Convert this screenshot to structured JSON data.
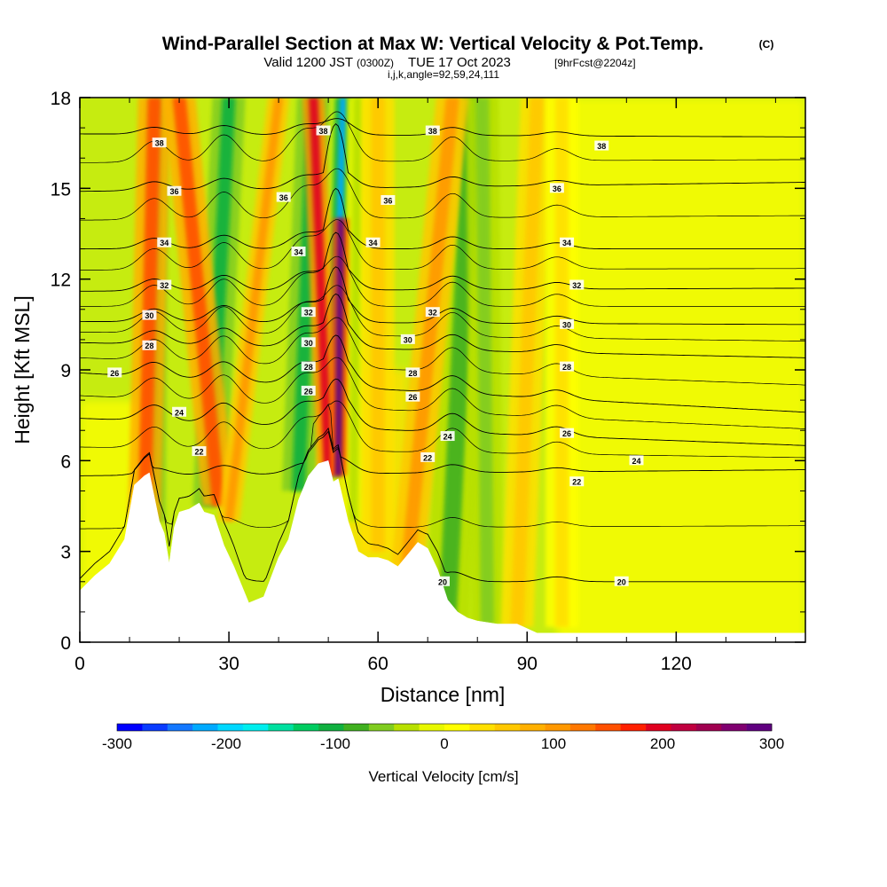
{
  "chart_data": {
    "type": "heatmap",
    "title": "Wind-Parallel Section at Max W: Vertical Velocity & Pot.Temp.",
    "title_mark": "(C)",
    "subtitle_prefix": "Valid 1200 JST",
    "subtitle_zulu": "(0300Z)",
    "subtitle_date": "TUE 17 Oct 2023",
    "subtitle_fcst": "[9hrFcst@2204z]",
    "subtitle_line3": "i,j,k,angle=92,59,24,111",
    "xlabel": "Distance [nm]",
    "ylabel": "Height [Kft MSL]",
    "xlim": [
      0,
      146
    ],
    "ylim": [
      0,
      18
    ],
    "xticks": [
      "0",
      "30",
      "60",
      "90",
      "120"
    ],
    "xtick_values": [
      0,
      30,
      60,
      90,
      120
    ],
    "yticks": [
      "0",
      "3",
      "6",
      "9",
      "12",
      "15",
      "18"
    ],
    "ytick_values": [
      0,
      3,
      6,
      9,
      12,
      15,
      18
    ],
    "colorbar": {
      "label": "Vertical Velocity [cm/s]",
      "range": [
        -300,
        300
      ],
      "ticks": [
        "-300",
        "-200",
        "-100",
        "0",
        "100",
        "200",
        "300"
      ],
      "tick_values": [
        -300,
        -200,
        -100,
        0,
        100,
        200,
        300
      ],
      "colors": [
        "#0000ff",
        "#0a3cff",
        "#1478ff",
        "#00aaff",
        "#00d8ff",
        "#00eeee",
        "#00e0a0",
        "#00cc60",
        "#10b040",
        "#40b020",
        "#80cc20",
        "#b8e000",
        "#e8f800",
        "#ffff00",
        "#ffe000",
        "#ffc800",
        "#ffb000",
        "#ff9800",
        "#ff7800",
        "#ff5000",
        "#ff2000",
        "#e00020",
        "#c00040",
        "#a00050",
        "#800070",
        "#600080"
      ]
    },
    "terrain_kft": [
      [
        0,
        1.7
      ],
      [
        3,
        2.2
      ],
      [
        6,
        2.6
      ],
      [
        9,
        3.4
      ],
      [
        11,
        5.2
      ],
      [
        13,
        5.5
      ],
      [
        14,
        5.6
      ],
      [
        16,
        4.0
      ],
      [
        17,
        3.6
      ],
      [
        18,
        2.6
      ],
      [
        19,
        3.8
      ],
      [
        20,
        4.3
      ],
      [
        22,
        4.4
      ],
      [
        24,
        4.6
      ],
      [
        25,
        4.3
      ],
      [
        27,
        4.2
      ],
      [
        29,
        3.2
      ],
      [
        31,
        2.5
      ],
      [
        34,
        1.3
      ],
      [
        37,
        1.5
      ],
      [
        40,
        2.8
      ],
      [
        42,
        3.4
      ],
      [
        44,
        4.7
      ],
      [
        46,
        5.5
      ],
      [
        48,
        5.9
      ],
      [
        50,
        6.0
      ],
      [
        51,
        5.3
      ],
      [
        52,
        5.4
      ],
      [
        54,
        4.0
      ],
      [
        56,
        3.0
      ],
      [
        58,
        2.8
      ],
      [
        60,
        2.8
      ],
      [
        62,
        2.7
      ],
      [
        64,
        2.5
      ],
      [
        66,
        2.9
      ],
      [
        68,
        3.3
      ],
      [
        70,
        3.1
      ],
      [
        72,
        2.4
      ],
      [
        74,
        1.4
      ],
      [
        76,
        1.0
      ],
      [
        78,
        0.8
      ],
      [
        80,
        0.7
      ],
      [
        84,
        0.6
      ],
      [
        88,
        0.6
      ],
      [
        92,
        0.3
      ],
      [
        100,
        0.3
      ],
      [
        146,
        0.3
      ]
    ],
    "updrafts": [
      {
        "x0": 13,
        "h0": 4.0,
        "h1": 18,
        "x1": 15,
        "w": 3,
        "value": 160
      },
      {
        "x0": 28,
        "h0": 4.5,
        "h1": 18,
        "x1": 20,
        "w": 3,
        "value": 150
      },
      {
        "x0": 30,
        "h0": 4.0,
        "h1": 18,
        "x1": 40,
        "w": 2,
        "value": 110
      },
      {
        "x0": 50,
        "h0": 5.5,
        "h1": 18,
        "x1": 47,
        "w": 2,
        "value": 200
      },
      {
        "x0": 52,
        "h0": 5.5,
        "h1": 14,
        "x1": 52.5,
        "w": 1.5,
        "value": 280
      },
      {
        "x0": 60,
        "h0": 3.0,
        "h1": 18,
        "x1": 60,
        "w": 3,
        "value": 60
      },
      {
        "x0": 66,
        "h0": 2.5,
        "h1": 18,
        "x1": 75,
        "w": 3,
        "value": 100
      },
      {
        "x0": 88,
        "h0": 0.5,
        "h1": 18,
        "x1": 92,
        "w": 3,
        "value": 50
      },
      {
        "x0": 97,
        "h0": 0.5,
        "h1": 18,
        "x1": 97,
        "w": 3,
        "value": 40
      }
    ],
    "downdrafts": [
      {
        "x0": 15,
        "h0": 4.0,
        "h1": 18,
        "x1": 15.5,
        "w": 2,
        "value": -110
      },
      {
        "x0": 26,
        "h0": 4.5,
        "h1": 18,
        "x1": 30,
        "w": 3,
        "value": -100
      },
      {
        "x0": 44,
        "h0": 5.0,
        "h1": 18,
        "x1": 47,
        "w": 3,
        "value": -100
      },
      {
        "x0": 51,
        "h0": 5.5,
        "h1": 18,
        "x1": 53,
        "w": 1.5,
        "value": -220
      },
      {
        "x0": 55,
        "h0": 4.0,
        "h1": 18,
        "x1": 56,
        "w": 2,
        "value": -40
      },
      {
        "x0": 74,
        "h0": 0.8,
        "h1": 18,
        "x1": 79,
        "w": 4,
        "value": -90
      },
      {
        "x0": 82,
        "h0": 0.6,
        "h1": 18,
        "x1": 81,
        "w": 3,
        "value": -50
      }
    ],
    "isentropes": [
      {
        "theta": 20,
        "h_west": 2.0,
        "h_east": 2.0
      },
      {
        "theta": 22,
        "h_west": 5.5,
        "h_east": 5.7
      },
      {
        "theta": 24,
        "h_west": 7.4,
        "h_east": 6.5
      },
      {
        "theta": 26,
        "h_west": 8.9,
        "h_east": 7.6
      },
      {
        "theta": 28,
        "h_west": 9.9,
        "h_east": 9.4
      },
      {
        "theta": 30,
        "h_west": 10.6,
        "h_east": 10.5
      },
      {
        "theta": 32,
        "h_west": 11.6,
        "h_east": 11.7
      },
      {
        "theta": 34,
        "h_west": 13.0,
        "h_east": 13.0
      },
      {
        "theta": 36,
        "h_west": 14.9,
        "h_east": 15.2
      },
      {
        "theta": 38,
        "h_west": 16.8,
        "h_east": 16.7
      }
    ],
    "isentrope_labels": [
      {
        "text": "38",
        "x": 16,
        "y": 16.5
      },
      {
        "text": "38",
        "x": 49,
        "y": 16.9
      },
      {
        "text": "38",
        "x": 71,
        "y": 16.9
      },
      {
        "text": "38",
        "x": 105,
        "y": 16.4
      },
      {
        "text": "36",
        "x": 19,
        "y": 14.9
      },
      {
        "text": "36",
        "x": 41,
        "y": 14.7
      },
      {
        "text": "36",
        "x": 62,
        "y": 14.6
      },
      {
        "text": "36",
        "x": 96,
        "y": 15.0
      },
      {
        "text": "34",
        "x": 17,
        "y": 13.2
      },
      {
        "text": "34",
        "x": 44,
        "y": 12.9
      },
      {
        "text": "34",
        "x": 59,
        "y": 13.2
      },
      {
        "text": "34",
        "x": 98,
        "y": 13.2
      },
      {
        "text": "32",
        "x": 17,
        "y": 11.8
      },
      {
        "text": "32",
        "x": 46,
        "y": 10.9
      },
      {
        "text": "32",
        "x": 71,
        "y": 10.9
      },
      {
        "text": "32",
        "x": 100,
        "y": 11.8
      },
      {
        "text": "30",
        "x": 14,
        "y": 10.8
      },
      {
        "text": "30",
        "x": 46,
        "y": 9.9
      },
      {
        "text": "30",
        "x": 66,
        "y": 10.0
      },
      {
        "text": "30",
        "x": 98,
        "y": 10.5
      },
      {
        "text": "28",
        "x": 14,
        "y": 9.8
      },
      {
        "text": "28",
        "x": 46,
        "y": 9.1
      },
      {
        "text": "28",
        "x": 67,
        "y": 8.9
      },
      {
        "text": "28",
        "x": 98,
        "y": 9.1
      },
      {
        "text": "26",
        "x": 7,
        "y": 8.9
      },
      {
        "text": "26",
        "x": 46,
        "y": 8.3
      },
      {
        "text": "26",
        "x": 67,
        "y": 8.1
      },
      {
        "text": "26",
        "x": 98,
        "y": 6.9
      },
      {
        "text": "24",
        "x": 20,
        "y": 7.6
      },
      {
        "text": "24",
        "x": 74,
        "y": 6.8
      },
      {
        "text": "24",
        "x": 112,
        "y": 6.0
      },
      {
        "text": "22",
        "x": 24,
        "y": 6.3
      },
      {
        "text": "22",
        "x": 70,
        "y": 6.1
      },
      {
        "text": "22",
        "x": 100,
        "y": 5.3
      },
      {
        "text": "20",
        "x": 73,
        "y": 2.0
      },
      {
        "text": "20",
        "x": 109,
        "y": 2.0
      }
    ]
  }
}
